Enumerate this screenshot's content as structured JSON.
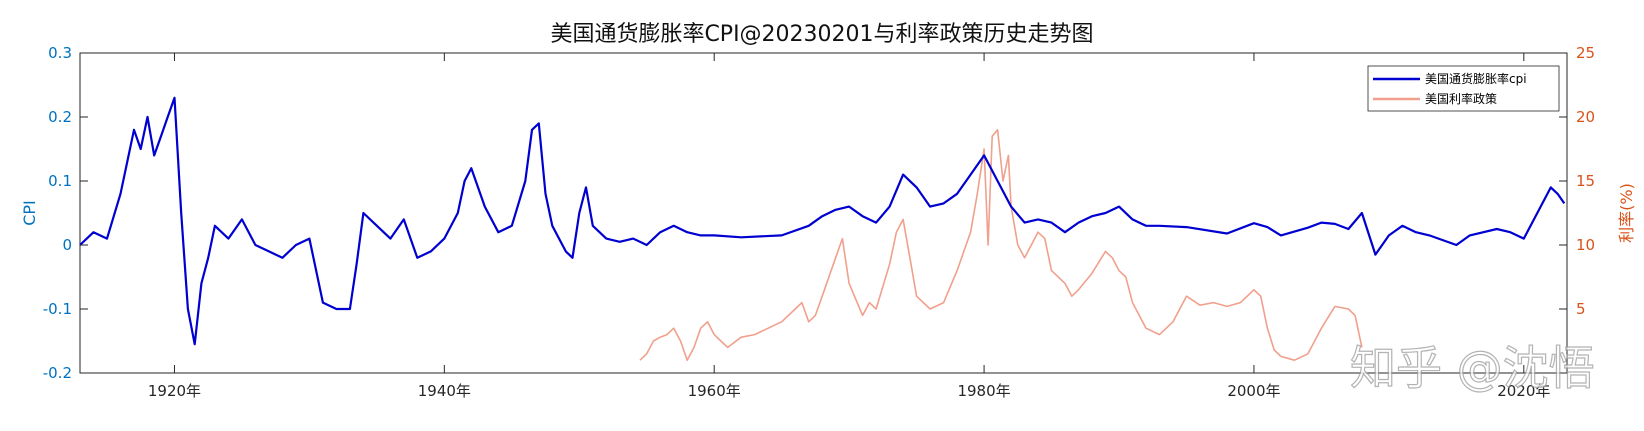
{
  "chart_data": {
    "type": "line",
    "title": "美国通货膨胀率CPI@20230201与利率政策历史走势图",
    "xlabel": "",
    "x_tick_labels": [
      "1920年",
      "1940年",
      "1960年",
      "1980年",
      "2000年",
      "2020年"
    ],
    "x_tick_years": [
      1920,
      1940,
      1960,
      1980,
      2000,
      2020
    ],
    "xlim": [
      1913,
      2023.2
    ],
    "y_left": {
      "label": "CPI",
      "ylim": [
        -0.2,
        0.3
      ],
      "ticks": [
        -0.2,
        -0.1,
        0,
        0.1,
        0.2,
        0.3
      ],
      "tick_labels": [
        "-0.2",
        "-0.1",
        "0",
        "0.1",
        "0.2",
        "0.3"
      ]
    },
    "y_right": {
      "label": "利率(%)",
      "ylim": [
        0,
        25
      ],
      "ticks": [
        5,
        10,
        15,
        20,
        25
      ],
      "tick_labels": [
        "5",
        "10",
        "15",
        "20",
        "25"
      ]
    },
    "legend": "top-right",
    "grid": false,
    "series": [
      {
        "name": "美国通货膨胀率cpi",
        "axis": "left",
        "color": "#0000d0",
        "x": [
          1913,
          1914,
          1915,
          1916,
          1917,
          1917.5,
          1918,
          1918.5,
          1919,
          1919.5,
          1920,
          1920.5,
          1921,
          1921.5,
          1922,
          1922.5,
          1923,
          1924,
          1925,
          1926,
          1927,
          1928,
          1929,
          1930,
          1931,
          1932,
          1933,
          1933.5,
          1934,
          1935,
          1936,
          1937,
          1938,
          1939,
          1940,
          1941,
          1941.5,
          1942,
          1943,
          1944,
          1945,
          1946,
          1946.5,
          1947,
          1947.5,
          1948,
          1949,
          1949.5,
          1950,
          1950.5,
          1951,
          1952,
          1953,
          1954,
          1955,
          1956,
          1957,
          1958,
          1959,
          1960,
          1962,
          1965,
          1967,
          1968,
          1969,
          1970,
          1971,
          1972,
          1973,
          1974,
          1975,
          1976,
          1977,
          1978,
          1979,
          1980,
          1981,
          1982,
          1983,
          1984,
          1985,
          1986,
          1987,
          1988,
          1989,
          1990,
          1991,
          1992,
          1993,
          1995,
          1998,
          2000,
          2001,
          2002,
          2004,
          2005,
          2006,
          2007,
          2008,
          2009,
          2010,
          2011,
          2012,
          2013,
          2015,
          2016,
          2018,
          2019,
          2020,
          2021,
          2022,
          2022.5,
          2023
        ],
        "values": [
          0,
          0.02,
          0.01,
          0.08,
          0.18,
          0.15,
          0.2,
          0.14,
          0.17,
          0.2,
          0.23,
          0.05,
          -0.1,
          -0.155,
          -0.06,
          -0.02,
          0.03,
          0.01,
          0.04,
          0,
          -0.01,
          -0.02,
          0,
          0.01,
          -0.09,
          -0.1,
          -0.1,
          -0.03,
          0.05,
          0.03,
          0.01,
          0.04,
          -0.02,
          -0.01,
          0.01,
          0.05,
          0.1,
          0.12,
          0.06,
          0.02,
          0.03,
          0.1,
          0.18,
          0.19,
          0.08,
          0.03,
          -0.01,
          -0.02,
          0.05,
          0.09,
          0.03,
          0.01,
          0.005,
          0.01,
          0,
          0.02,
          0.03,
          0.02,
          0.015,
          0.015,
          0.012,
          0.015,
          0.03,
          0.045,
          0.055,
          0.06,
          0.045,
          0.035,
          0.06,
          0.11,
          0.09,
          0.06,
          0.065,
          0.08,
          0.11,
          0.14,
          0.1,
          0.06,
          0.035,
          0.04,
          0.035,
          0.02,
          0.035,
          0.045,
          0.05,
          0.06,
          0.04,
          0.03,
          0.03,
          0.028,
          0.018,
          0.034,
          0.028,
          0.015,
          0.027,
          0.035,
          0.033,
          0.025,
          0.05,
          -0.015,
          0.015,
          0.03,
          0.02,
          0.015,
          0,
          0.015,
          0.025,
          0.02,
          0.01,
          0.05,
          0.09,
          0.08,
          0.065
        ]
      },
      {
        "name": "美国利率政策",
        "axis": "right",
        "color": "#f0a08c",
        "x": [
          1954.5,
          1955,
          1955.5,
          1956,
          1956.5,
          1957,
          1957.5,
          1958,
          1958.5,
          1959,
          1959.5,
          1960,
          1960.5,
          1961,
          1962,
          1963,
          1964,
          1965,
          1966,
          1966.5,
          1967,
          1967.5,
          1968,
          1969,
          1969.5,
          1970,
          1971,
          1971.5,
          1972,
          1973,
          1973.5,
          1974,
          1974.5,
          1975,
          1976,
          1977,
          1978,
          1979,
          1979.5,
          1980,
          1980.3,
          1980.6,
          1981,
          1981.4,
          1981.8,
          1982,
          1982.5,
          1983,
          1984,
          1984.5,
          1985,
          1986,
          1986.5,
          1987,
          1988,
          1989,
          1989.5,
          1990,
          1990.5,
          1991,
          1992,
          1993,
          1994,
          1995,
          1996,
          1997,
          1998,
          1999,
          2000,
          2000.5,
          2001,
          2001.5,
          2002,
          2003,
          2004,
          2005,
          2006,
          2007,
          2007.5,
          2008
        ],
        "values": [
          1.0,
          1.5,
          2.5,
          2.8,
          3.0,
          3.5,
          2.5,
          1.0,
          2.0,
          3.5,
          4.0,
          3.0,
          2.5,
          2.0,
          2.8,
          3.0,
          3.5,
          4.0,
          5.0,
          5.5,
          4.0,
          4.5,
          6.0,
          9.0,
          10.5,
          7.0,
          4.5,
          5.5,
          5.0,
          8.5,
          11.0,
          12.0,
          9.0,
          6.0,
          5.0,
          5.5,
          8.0,
          11.0,
          14.0,
          17.5,
          10.0,
          18.5,
          19.0,
          15.0,
          17.0,
          13.0,
          10.0,
          9.0,
          11.0,
          10.5,
          8.0,
          7.0,
          6.0,
          6.5,
          7.8,
          9.5,
          9.0,
          8.0,
          7.5,
          5.5,
          3.5,
          3.0,
          4.0,
          6.0,
          5.3,
          5.5,
          5.2,
          5.5,
          6.5,
          6.0,
          3.5,
          1.8,
          1.3,
          1.0,
          1.5,
          3.5,
          5.2,
          5.0,
          4.5,
          2.0
        ]
      }
    ]
  },
  "watermark": "知乎 @沈悟"
}
